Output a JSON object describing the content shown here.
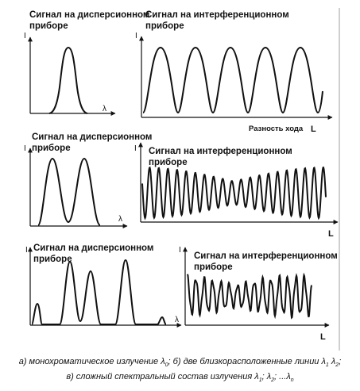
{
  "panels": [
    {
      "id": "a-dispersion",
      "title": [
        "Сигнал на дисперсионном",
        "приборе"
      ],
      "x_axis_letter": "λ",
      "y_axis_letter": "I"
    },
    {
      "id": "a-interference",
      "title": [
        "Сигнал на интерференционном",
        "приборе"
      ],
      "x_axis_letter": "",
      "y_axis_letter": "I",
      "xlabel": "Разность хода",
      "x_big_letter": "L"
    },
    {
      "id": "b-dispersion",
      "title": [
        "Сигнал на дисперсионном",
        "приборе"
      ],
      "x_axis_letter": "λ",
      "y_axis_letter": "I"
    },
    {
      "id": "b-interference",
      "title": [
        "Сигнал на интерференционном",
        "приборе"
      ],
      "x_axis_letter": "L",
      "y_axis_letter": "I"
    },
    {
      "id": "c-dispersion",
      "title": [
        "Сигнал на дисперсионном",
        "приборе"
      ],
      "x_axis_letter": "λ",
      "y_axis_letter": "I"
    },
    {
      "id": "c-interference",
      "title": [
        "Сигнал на интерференционном",
        "приборе"
      ],
      "x_axis_letter": "L",
      "y_axis_letter": "I"
    }
  ],
  "caption": {
    "line1": {
      "p1": "а) монохроматическое излучение λ",
      "s1": "0",
      "p2": "; б) две близкорасположенные линии λ",
      "s2": "1",
      "p3": " λ",
      "s3": "2",
      "p4": ";"
    },
    "line2": {
      "p1": "в) сложный спектральный состав излучения λ",
      "s1": "1",
      "p2": "; λ",
      "s2": "2",
      "p3": "; ...λ",
      "s3": "n"
    }
  }
}
